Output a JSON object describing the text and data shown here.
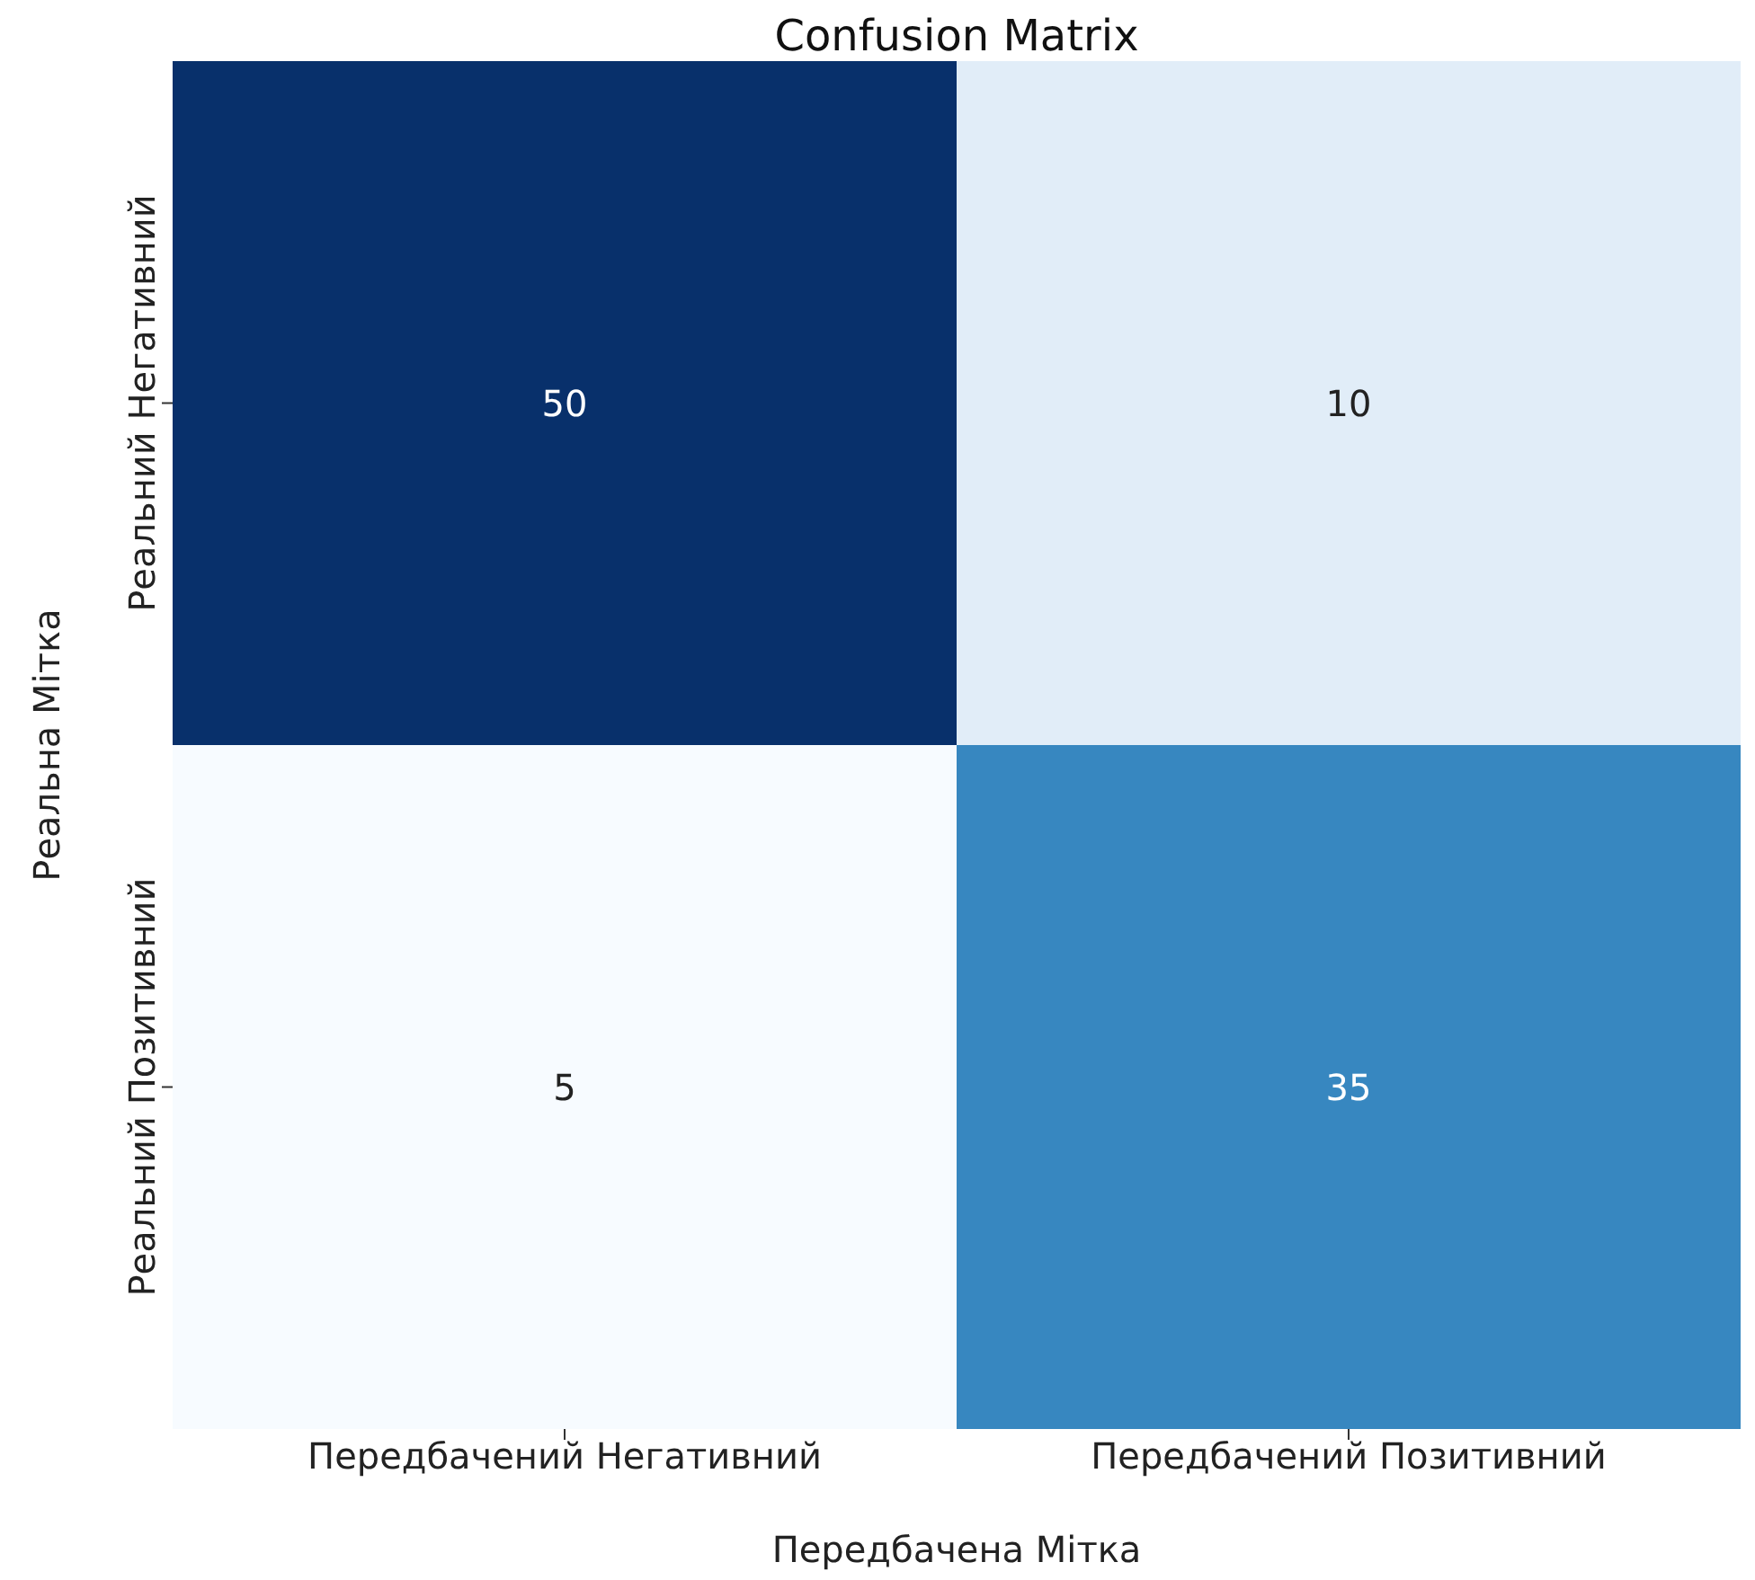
{
  "chart_data": {
    "type": "heatmap",
    "title": "Confusion Matrix",
    "xlabel": "Передбачена Мітка",
    "ylabel": "Реальна Мітка",
    "categories": [
      "Передбачений Негативний",
      "Передбачений Позитивний"
    ],
    "y_categories": [
      "Реальний Негативний",
      "Реальний Позитивний"
    ],
    "cells": [
      [
        50,
        10
      ],
      [
        5,
        35
      ]
    ],
    "data_labels": true
  }
}
